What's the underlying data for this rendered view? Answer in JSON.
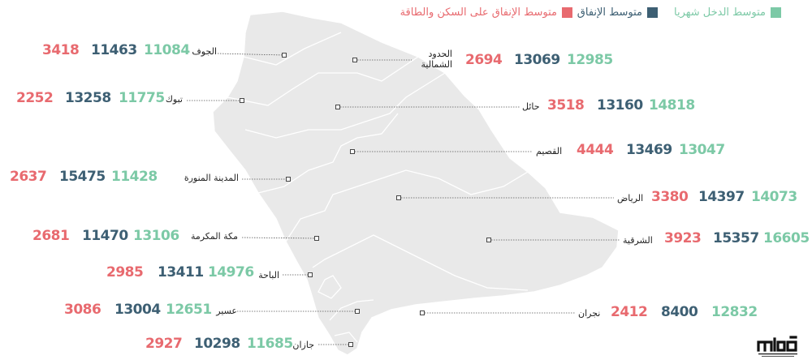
{
  "colors": {
    "income": "#7cc9a6",
    "expense": "#3d5f73",
    "housing": "#e86a6f",
    "map_fill": "#e9e9e9",
    "map_border": "#ffffff"
  },
  "legend": {
    "income_label": "متوسط الدخل شهريا",
    "expense_label": "متوسط الإنفاق",
    "housing_label": "متوسط الإنفاق على السكن والطاقة"
  },
  "regions": [
    {
      "name": "الجوف",
      "income": "11084",
      "expense": "11463",
      "housing": "3418"
    },
    {
      "name": "تبوك",
      "income": "11775",
      "expense": "13258",
      "housing": "2252"
    },
    {
      "name": "المدينة المنورة",
      "income": "11428",
      "expense": "15475",
      "housing": "2637"
    },
    {
      "name": "مكة المكرمة",
      "income": "13106",
      "expense": "11470",
      "housing": "2681"
    },
    {
      "name": "الباحة",
      "income": "14976",
      "expense": "13411",
      "housing": "2985"
    },
    {
      "name": "عسير",
      "income": "12651",
      "expense": "13004",
      "housing": "3086"
    },
    {
      "name": "جازان",
      "income": "11685",
      "expense": "10298",
      "housing": "2927"
    },
    {
      "name": "الحدود الشمالية",
      "name_line1": "الحدود",
      "name_line2": "الشمالية",
      "income": "12985",
      "expense": "13069",
      "housing": "2694"
    },
    {
      "name": "حائل",
      "income": "14818",
      "expense": "13160",
      "housing": "3518"
    },
    {
      "name": "القصيم",
      "income": "13047",
      "expense": "13469",
      "housing": "4444"
    },
    {
      "name": "الرياض",
      "income": "14073",
      "expense": "14397",
      "housing": "3380"
    },
    {
      "name": "الشرقية",
      "income": "16605",
      "expense": "15357",
      "housing": "3923"
    },
    {
      "name": "نجران",
      "income": "12832",
      "expense": "8400",
      "housing": "2412"
    }
  ],
  "logo": {
    "icon": "makkah-newspaper-logo"
  }
}
